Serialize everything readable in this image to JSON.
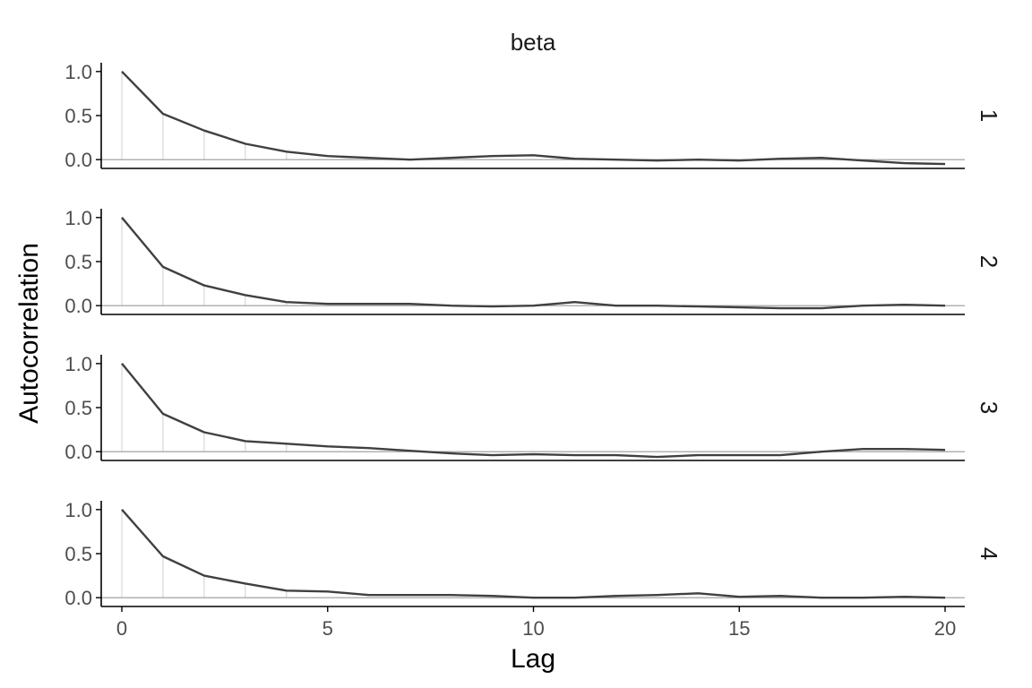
{
  "chart_data": {
    "type": "line",
    "facet_title": "beta",
    "xlabel": "Lag",
    "ylabel": "Autocorrelation",
    "xlim": [
      0,
      20
    ],
    "ylim": [
      -0.1,
      1.1
    ],
    "x_ticks": [
      0,
      5,
      10,
      15,
      20
    ],
    "y_ticks": [
      0.0,
      0.5,
      1.0
    ],
    "y_tick_labels": [
      "0.0",
      "0.5",
      "1.0"
    ],
    "grid": false,
    "lag_reference_lines_up_to": 4,
    "x": [
      0,
      1,
      2,
      3,
      4,
      5,
      6,
      7,
      8,
      9,
      10,
      11,
      12,
      13,
      14,
      15,
      16,
      17,
      18,
      19,
      20
    ],
    "panels": [
      {
        "label": "1",
        "values": [
          1.0,
          0.52,
          0.33,
          0.18,
          0.09,
          0.04,
          0.02,
          0.0,
          0.02,
          0.04,
          0.05,
          0.01,
          0.0,
          -0.01,
          0.0,
          -0.01,
          0.01,
          0.02,
          -0.01,
          -0.04,
          -0.05
        ]
      },
      {
        "label": "2",
        "values": [
          1.0,
          0.44,
          0.23,
          0.12,
          0.04,
          0.02,
          0.02,
          0.02,
          0.0,
          -0.01,
          0.0,
          0.04,
          0.0,
          0.0,
          -0.01,
          -0.02,
          -0.03,
          -0.03,
          0.0,
          0.01,
          0.0
        ]
      },
      {
        "label": "3",
        "values": [
          1.0,
          0.43,
          0.22,
          0.12,
          0.09,
          0.06,
          0.04,
          0.01,
          -0.02,
          -0.04,
          -0.03,
          -0.04,
          -0.04,
          -0.06,
          -0.04,
          -0.04,
          -0.04,
          0.0,
          0.03,
          0.03,
          0.02
        ]
      },
      {
        "label": "4",
        "values": [
          1.0,
          0.47,
          0.25,
          0.16,
          0.08,
          0.07,
          0.03,
          0.03,
          0.03,
          0.02,
          0.0,
          0.0,
          0.02,
          0.03,
          0.05,
          0.01,
          0.02,
          0.0,
          0.0,
          0.01,
          0.0
        ]
      }
    ]
  },
  "colors": {
    "line": "#404040",
    "zero_line": "#999999",
    "lag_lines": "#d0d0d0",
    "axis": "#000000",
    "tick_text": "#4d4d4d"
  }
}
